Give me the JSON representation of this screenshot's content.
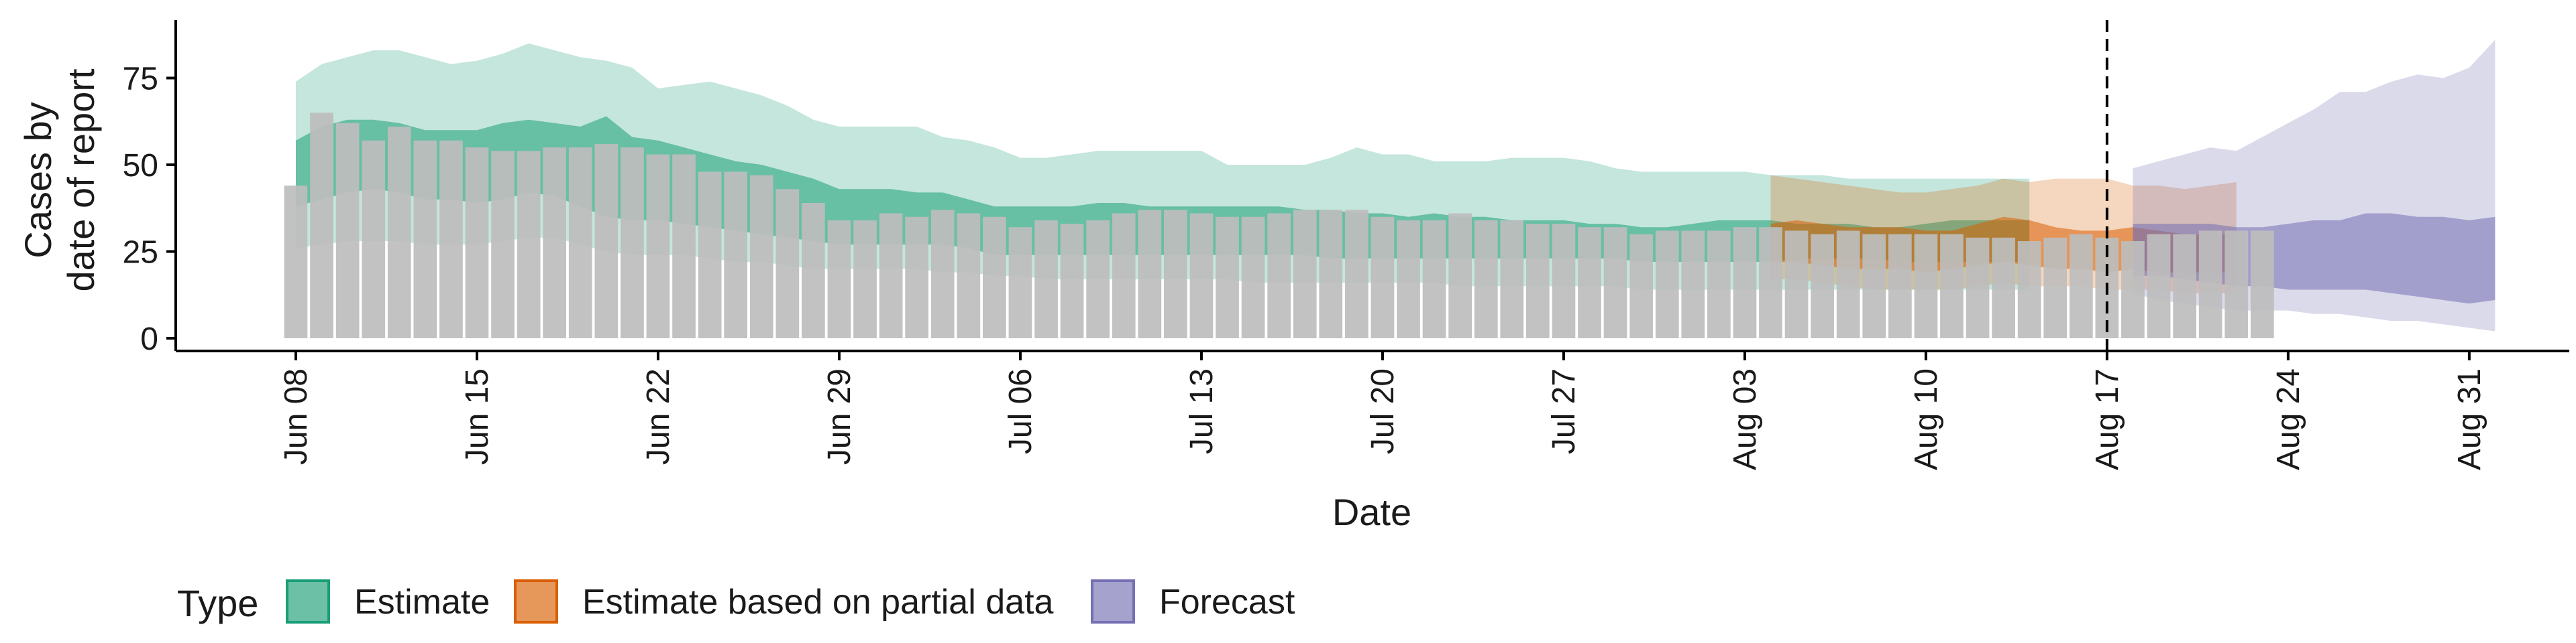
{
  "chart_data": {
    "type": "area",
    "title": "",
    "xlabel": "Date",
    "ylabel_lines": [
      "Cases by",
      "date of report"
    ],
    "x_ticks": [
      "Jun 08",
      "Jun 15",
      "Jun 22",
      "Jun 29",
      "Jul 06",
      "Jul 13",
      "Jul 20",
      "Jul 27",
      "Aug 03",
      "Aug 10",
      "Aug 17",
      "Aug 24",
      "Aug 31"
    ],
    "x_tick_days": [
      0,
      7,
      14,
      21,
      28,
      35,
      42,
      49,
      56,
      63,
      70,
      77,
      84
    ],
    "y_ticks": [
      0,
      25,
      50,
      75
    ],
    "xlim": [
      "Jun 07",
      "Sep 01"
    ],
    "ylim": [
      -4,
      91
    ],
    "vline_date": "Aug 17",
    "bars": {
      "color": "#bdbdbd",
      "start_date": "Jun 08",
      "values": [
        44,
        65,
        62,
        57,
        61,
        57,
        57,
        55,
        54,
        54,
        55,
        55,
        56,
        55,
        53,
        53,
        48,
        48,
        47,
        43,
        39,
        34,
        34,
        36,
        35,
        37,
        36,
        35,
        32,
        34,
        33,
        34,
        36,
        37,
        37,
        36,
        35,
        35,
        36,
        37,
        37,
        37,
        35,
        34,
        34,
        36,
        34,
        34,
        33,
        33,
        32,
        32,
        30,
        31,
        31,
        31,
        32,
        32,
        31,
        30,
        31,
        30,
        30,
        30,
        30,
        29,
        29,
        28,
        29,
        30,
        29,
        28,
        30,
        30,
        31,
        31,
        31
      ]
    },
    "series": [
      {
        "name": "Estimate",
        "color": "#1b9e77",
        "start_date": "Jun 08",
        "inner_upper": [
          57,
          61,
          63,
          63,
          62,
          60,
          60,
          60,
          62,
          63,
          62,
          61,
          64,
          58,
          57,
          55,
          53,
          51,
          50,
          48,
          46,
          43,
          43,
          43,
          42,
          42,
          40,
          38,
          38,
          38,
          38,
          39,
          39,
          38,
          38,
          38,
          38,
          38,
          38,
          37,
          37,
          36,
          36,
          35,
          36,
          35,
          35,
          34,
          34,
          34,
          33,
          33,
          32,
          32,
          33,
          34,
          34,
          34,
          33,
          33,
          33,
          32,
          32,
          33,
          34,
          34,
          34,
          34
        ],
        "inner_lower": [
          38,
          40,
          42,
          43,
          42,
          40,
          40,
          39,
          40,
          42,
          41,
          38,
          35,
          34,
          34,
          33,
          32,
          31,
          30,
          29,
          28,
          27,
          27,
          27,
          27,
          27,
          26,
          24,
          24,
          24,
          24,
          24,
          24,
          24,
          24,
          24,
          24,
          24,
          24,
          24,
          23,
          23,
          23,
          23,
          23,
          23,
          23,
          23,
          23,
          23,
          23,
          23,
          22,
          22,
          22,
          22,
          22,
          22,
          23,
          23,
          23,
          23,
          22,
          22,
          22,
          22,
          22,
          22
        ],
        "outer_upper": [
          74,
          79,
          81,
          83,
          83,
          81,
          79,
          80,
          82,
          85,
          83,
          81,
          80,
          78,
          72,
          73,
          74,
          72,
          70,
          67,
          63,
          61,
          61,
          61,
          61,
          58,
          57,
          55,
          52,
          52,
          53,
          54,
          54,
          54,
          54,
          54,
          50,
          50,
          50,
          50,
          52,
          55,
          53,
          53,
          51,
          51,
          51,
          52,
          52,
          52,
          51,
          49,
          48,
          48,
          48,
          48,
          48,
          47,
          47,
          47,
          46,
          46,
          46,
          46,
          46,
          46,
          46,
          46
        ],
        "outer_lower": [
          26,
          27,
          28,
          28,
          28,
          27,
          27,
          27,
          28,
          29,
          29,
          27,
          25,
          24,
          24,
          24,
          23,
          22,
          22,
          21,
          20,
          20,
          20,
          20,
          20,
          19,
          19,
          18,
          18,
          17,
          17,
          17,
          17,
          17,
          17,
          17,
          17,
          16,
          16,
          16,
          16,
          16,
          16,
          16,
          16,
          15,
          15,
          15,
          15,
          15,
          15,
          15,
          14,
          14,
          14,
          14,
          14,
          14,
          14,
          14,
          14,
          14,
          14,
          14,
          14,
          14,
          14,
          14
        ]
      },
      {
        "name": "Estimate based on partial data",
        "color": "#d95f02",
        "start_date": "Aug 04",
        "inner_upper": [
          33,
          34,
          33,
          32,
          32,
          32,
          31,
          31,
          33,
          35,
          34,
          32,
          31,
          31,
          32,
          31,
          30,
          30,
          30
        ],
        "inner_lower": [
          22,
          22,
          21,
          20,
          20,
          20,
          19,
          20,
          21,
          22,
          21,
          20,
          20,
          19,
          20,
          19,
          19,
          19,
          19
        ],
        "outer_upper": [
          47,
          46,
          45,
          44,
          43,
          42,
          42,
          43,
          44,
          46,
          45,
          46,
          46,
          46,
          44,
          44,
          43,
          44,
          45
        ],
        "outer_lower": [
          17,
          17,
          16,
          15,
          14,
          14,
          14,
          14,
          15,
          16,
          15,
          15,
          15,
          14,
          14,
          14,
          13,
          13,
          13
        ]
      },
      {
        "name": "Forecast",
        "color": "#7570b3",
        "start_date": "Aug 18",
        "inner_upper": [
          33,
          33,
          33,
          33,
          32,
          32,
          33,
          34,
          34,
          36,
          36,
          35,
          35,
          34,
          35
        ],
        "inner_lower": [
          18,
          18,
          17,
          16,
          15,
          15,
          14,
          14,
          14,
          14,
          13,
          12,
          11,
          10,
          11
        ],
        "outer_upper": [
          49,
          51,
          53,
          55,
          54,
          58,
          62,
          66,
          71,
          71,
          74,
          76,
          75,
          78,
          86
        ],
        "outer_lower": [
          13,
          11,
          10,
          9,
          8,
          8,
          8,
          7,
          7,
          6,
          5,
          5,
          4,
          3,
          2
        ]
      }
    ],
    "legend": {
      "title": "Type",
      "position": "bottom-left",
      "entries": [
        "Estimate",
        "Estimate based on partial data",
        "Forecast"
      ]
    }
  }
}
